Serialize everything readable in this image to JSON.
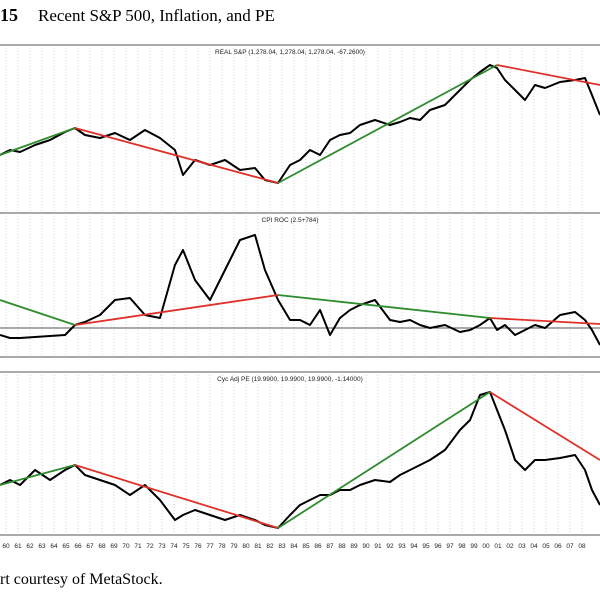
{
  "figure": {
    "number": "15",
    "title": "Recent S&P 500, Inflation, and PE",
    "caption": "rt courtesy of MetaStock."
  },
  "chart_data": [
    {
      "type": "line",
      "title": "REAL S&P (1,278.04, 1,278.04, 1,278.04, -67.2600)",
      "xlim": [
        1959.5,
        2009.5
      ],
      "ylim": [
        0,
        168
      ],
      "grid": true,
      "series": [
        {
          "color": "#000000",
          "x": [
            1959.5,
            1960.33,
            1961.17,
            1962.42,
            1963.67,
            1964.92,
            1965.75,
            1966.58,
            1967.83,
            1969.08,
            1970.33,
            1971.58,
            1972.83,
            1974.08,
            1974.75,
            1975.75,
            1977,
            1978.25,
            1979.5,
            1980.75,
            1981.58,
            1982.67,
            1983.67,
            1984.5,
            1985.33,
            1986.17,
            1987,
            1987.83,
            1988.67,
            1989.5,
            1990.75,
            1992,
            1992.83,
            1993.67,
            1994.5,
            1995.33,
            1996.58,
            1997.83,
            1998.67,
            1999.5,
            2000.33,
            2000.92,
            2001.58,
            2002.42,
            2003.25,
            2004.08,
            2004.92,
            2006.17,
            2007.42,
            2008.25,
            2008.83,
            2009.5
          ],
          "values": [
            58,
            63,
            61,
            68,
            73,
            81,
            85,
            78,
            75,
            80,
            73,
            83,
            75,
            63,
            38,
            53,
            48,
            53,
            43,
            45,
            33,
            30,
            48,
            53,
            63,
            58,
            73,
            78,
            80,
            88,
            93,
            88,
            91,
            95,
            93,
            103,
            108,
            123,
            133,
            141,
            148,
            145,
            133,
            123,
            113,
            128,
            125,
            131,
            133,
            135,
            118,
            98
          ]
        },
        {
          "color": "#2e8b2e",
          "x": [
            1959.5,
            1965.75
          ],
          "values": [
            58,
            85
          ]
        },
        {
          "color": "#e0302a",
          "x": [
            1965.75,
            1982.67
          ],
          "values": [
            85,
            30
          ]
        },
        {
          "color": "#2e8b2e",
          "x": [
            1982.67,
            2000.92
          ],
          "values": [
            30,
            148
          ]
        },
        {
          "color": "#e0302a",
          "x": [
            2000.92,
            2009.5
          ],
          "values": [
            148,
            128
          ]
        }
      ]
    },
    {
      "type": "line",
      "title": "CPI ROC (2.5+784)",
      "xlim": [
        1959.5,
        2009.5
      ],
      "ylim": [
        0,
        144
      ],
      "grid": true,
      "hlines": [
        29
      ],
      "series": [
        {
          "color": "#000000",
          "x": [
            1959.5,
            1960.33,
            1961.17,
            1962.42,
            1963.67,
            1964.92,
            1965.75,
            1966.58,
            1967.83,
            1969.08,
            1970.33,
            1971.58,
            1972.83,
            1974.08,
            1974.75,
            1975.75,
            1977,
            1978.25,
            1979.5,
            1980.75,
            1981.58,
            1982.67,
            1983.67,
            1984.5,
            1985.33,
            1986.17,
            1987,
            1987.83,
            1988.67,
            1989.5,
            1990.75,
            1992,
            1992.83,
            1993.67,
            1994.5,
            1995.33,
            1996.58,
            1997.83,
            1998.67,
            1999.5,
            2000.33,
            2000.92,
            2001.58,
            2002.42,
            2003.25,
            2004.08,
            2004.92,
            2006.17,
            2007.42,
            2008.25,
            2008.83,
            2009.5
          ],
          "values": [
            22,
            19,
            19,
            20,
            21,
            22,
            32,
            35,
            42,
            57,
            59,
            42,
            39,
            92,
            107,
            77,
            57,
            87,
            117,
            122,
            87,
            57,
            37,
            37,
            32,
            47,
            22,
            39,
            47,
            52,
            57,
            37,
            35,
            37,
            32,
            29,
            32,
            25,
            27,
            32,
            39,
            27,
            32,
            22,
            27,
            32,
            29,
            42,
            45,
            37,
            27,
            12
          ]
        },
        {
          "color": "#2e8b2e",
          "x": [
            1959.5,
            1965.75
          ],
          "values": [
            57,
            32
          ]
        },
        {
          "color": "#e0302a",
          "x": [
            1965.75,
            1982.67
          ],
          "values": [
            32,
            62
          ]
        },
        {
          "color": "#2e8b2e",
          "x": [
            1982.67,
            2000.33
          ],
          "values": [
            62,
            39
          ]
        },
        {
          "color": "#e0302a",
          "x": [
            2000.33,
            2009.5
          ],
          "values": [
            39,
            33
          ]
        }
      ]
    },
    {
      "type": "line",
      "title": "Cyc Adj PE (19.9900, 19.9900, 19.9900, -1.14000)",
      "xlim": [
        1959.5,
        2009.5
      ],
      "ylim": [
        0,
        163
      ],
      "grid": true,
      "xticks": [
        {
          "value": 1960,
          "label": "60"
        },
        {
          "value": 1961,
          "label": "61"
        },
        {
          "value": 1962,
          "label": "62"
        },
        {
          "value": 1963,
          "label": "63"
        },
        {
          "value": 1964,
          "label": "64"
        },
        {
          "value": 1965,
          "label": "65"
        },
        {
          "value": 1966,
          "label": "66"
        },
        {
          "value": 1967,
          "label": "67"
        },
        {
          "value": 1968,
          "label": "68"
        },
        {
          "value": 1969,
          "label": "69"
        },
        {
          "value": 1970,
          "label": "70"
        },
        {
          "value": 1971,
          "label": "71"
        },
        {
          "value": 1972,
          "label": "72"
        },
        {
          "value": 1973,
          "label": "73"
        },
        {
          "value": 1974,
          "label": "74"
        },
        {
          "value": 1975,
          "label": "75"
        },
        {
          "value": 1976,
          "label": "76"
        },
        {
          "value": 1977,
          "label": "77"
        },
        {
          "value": 1978,
          "label": "78"
        },
        {
          "value": 1979,
          "label": "79"
        },
        {
          "value": 1980,
          "label": "80"
        },
        {
          "value": 1981,
          "label": "81"
        },
        {
          "value": 1982,
          "label": "82"
        },
        {
          "value": 1983,
          "label": "83"
        },
        {
          "value": 1984,
          "label": "84"
        },
        {
          "value": 1985,
          "label": "85"
        },
        {
          "value": 1986,
          "label": "86"
        },
        {
          "value": 1987,
          "label": "87"
        },
        {
          "value": 1988,
          "label": "88"
        },
        {
          "value": 1989,
          "label": "89"
        },
        {
          "value": 1990,
          "label": "90"
        },
        {
          "value": 1991,
          "label": "91"
        },
        {
          "value": 1992,
          "label": "92"
        },
        {
          "value": 1993,
          "label": "93"
        },
        {
          "value": 1994,
          "label": "94"
        },
        {
          "value": 1995,
          "label": "95"
        },
        {
          "value": 1996,
          "label": "96"
        },
        {
          "value": 1997,
          "label": "97"
        },
        {
          "value": 1998,
          "label": "98"
        },
        {
          "value": 1999,
          "label": "99"
        },
        {
          "value": 2000,
          "label": "00"
        },
        {
          "value": 2001,
          "label": "01"
        },
        {
          "value": 2002,
          "label": "02"
        },
        {
          "value": 2003,
          "label": "03"
        },
        {
          "value": 2004,
          "label": "04"
        },
        {
          "value": 2005,
          "label": "05"
        },
        {
          "value": 2006,
          "label": "06"
        },
        {
          "value": 2007,
          "label": "07"
        },
        {
          "value": 2008,
          "label": "08"
        }
      ],
      "series": [
        {
          "color": "#000000",
          "x": [
            1959.5,
            1960.33,
            1961.17,
            1962.42,
            1963.67,
            1964.92,
            1965.75,
            1966.58,
            1967.83,
            1969.08,
            1970.33,
            1971.58,
            1972.83,
            1974.08,
            1974.75,
            1975.75,
            1977,
            1978.25,
            1979.5,
            1980.75,
            1981.58,
            1982.67,
            1983.67,
            1984.5,
            1985.33,
            1986.17,
            1987,
            1987.83,
            1988.67,
            1989.5,
            1990.75,
            1992,
            1992.83,
            1993.67,
            1994.5,
            1995.33,
            1996.58,
            1997.83,
            1998.67,
            1999.5,
            2000.33,
            2000.92,
            2001.58,
            2002.42,
            2003.25,
            2004.08,
            2004.92,
            2006.17,
            2007.42,
            2008.25,
            2008.83,
            2009.5
          ],
          "values": [
            50,
            55,
            50,
            65,
            55,
            65,
            70,
            60,
            55,
            50,
            40,
            50,
            35,
            15,
            20,
            25,
            20,
            15,
            20,
            15,
            10,
            7,
            20,
            30,
            35,
            40,
            40,
            45,
            45,
            50,
            55,
            53,
            60,
            65,
            70,
            75,
            85,
            105,
            115,
            140,
            143,
            125,
            105,
            75,
            65,
            75,
            75,
            77,
            80,
            65,
            45,
            30
          ]
        },
        {
          "color": "#2e8b2e",
          "x": [
            1959.5,
            1965.75
          ],
          "values": [
            50,
            70
          ]
        },
        {
          "color": "#e0302a",
          "x": [
            1965.75,
            1982.67
          ],
          "values": [
            70,
            7
          ]
        },
        {
          "color": "#2e8b2e",
          "x": [
            1982.67,
            2000.33
          ],
          "values": [
            7,
            143
          ]
        },
        {
          "color": "#e0302a",
          "x": [
            2000.33,
            2009.5
          ],
          "values": [
            143,
            75
          ]
        }
      ]
    }
  ]
}
